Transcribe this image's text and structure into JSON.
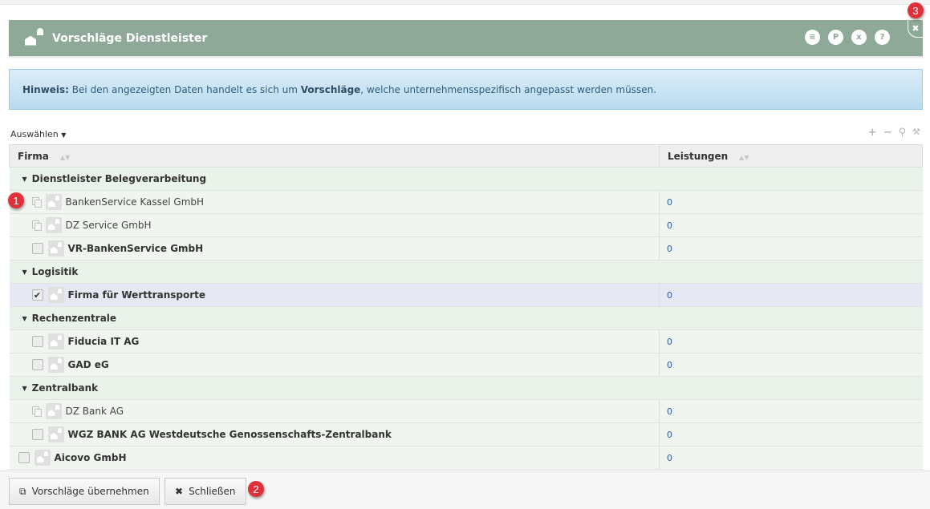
{
  "header": {
    "title": "Vorschläge Dienstleister",
    "buttons": [
      {
        "icon": "list-icon",
        "glyph": "≡"
      },
      {
        "icon": "pdf-icon",
        "glyph": "P"
      },
      {
        "icon": "excel-icon",
        "glyph": "x"
      },
      {
        "icon": "help-icon",
        "glyph": "?"
      }
    ],
    "close_glyph": "✖"
  },
  "hint": {
    "label": "Hinweis:",
    "text1": " Bei den angezeigten Daten handelt es sich um ",
    "bold": "Vorschläge",
    "text2": ", welche unternehmensspezifisch angepasst werden müssen."
  },
  "toolbar": {
    "select_label": "Auswählen",
    "tools": [
      "+",
      "−",
      "⚲",
      "🔧"
    ]
  },
  "table": {
    "columns": [
      "Firma",
      "Leistungen"
    ],
    "rows": [
      {
        "type": "group",
        "label": "Dienstleister Belegverarbeitung"
      },
      {
        "type": "copy",
        "label": "BankenService Kassel GmbH",
        "value": "0"
      },
      {
        "type": "copy",
        "label": "DZ Service GmbH",
        "value": "0"
      },
      {
        "type": "check",
        "label": "VR-BankenService GmbH",
        "value": "0",
        "checked": false
      },
      {
        "type": "group",
        "label": "Logisitik"
      },
      {
        "type": "check",
        "label": "Firma für Werttransporte",
        "value": "0",
        "checked": true
      },
      {
        "type": "group",
        "label": "Rechenzentrale"
      },
      {
        "type": "check",
        "label": "Fiducia IT AG",
        "value": "0",
        "checked": false
      },
      {
        "type": "check",
        "label": "GAD eG",
        "value": "0",
        "checked": false
      },
      {
        "type": "group",
        "label": "Zentralbank"
      },
      {
        "type": "copy",
        "label": "DZ Bank AG",
        "value": "0"
      },
      {
        "type": "check",
        "label": "WGZ BANK AG Westdeutsche Genossenschafts-Zentralbank",
        "value": "0",
        "checked": false
      },
      {
        "type": "check-top",
        "label": "Aicovo GmbH",
        "value": "0",
        "checked": false
      }
    ]
  },
  "footer": {
    "apply_label": "Vorschläge übernehmen",
    "close_label": "Schließen"
  },
  "badges": [
    "1",
    "2",
    "3"
  ],
  "colors": {
    "header": "#8fa998",
    "hint": "#c9e4f4",
    "accent_badge": "#e0303a",
    "value_link": "#2a5a9a"
  }
}
